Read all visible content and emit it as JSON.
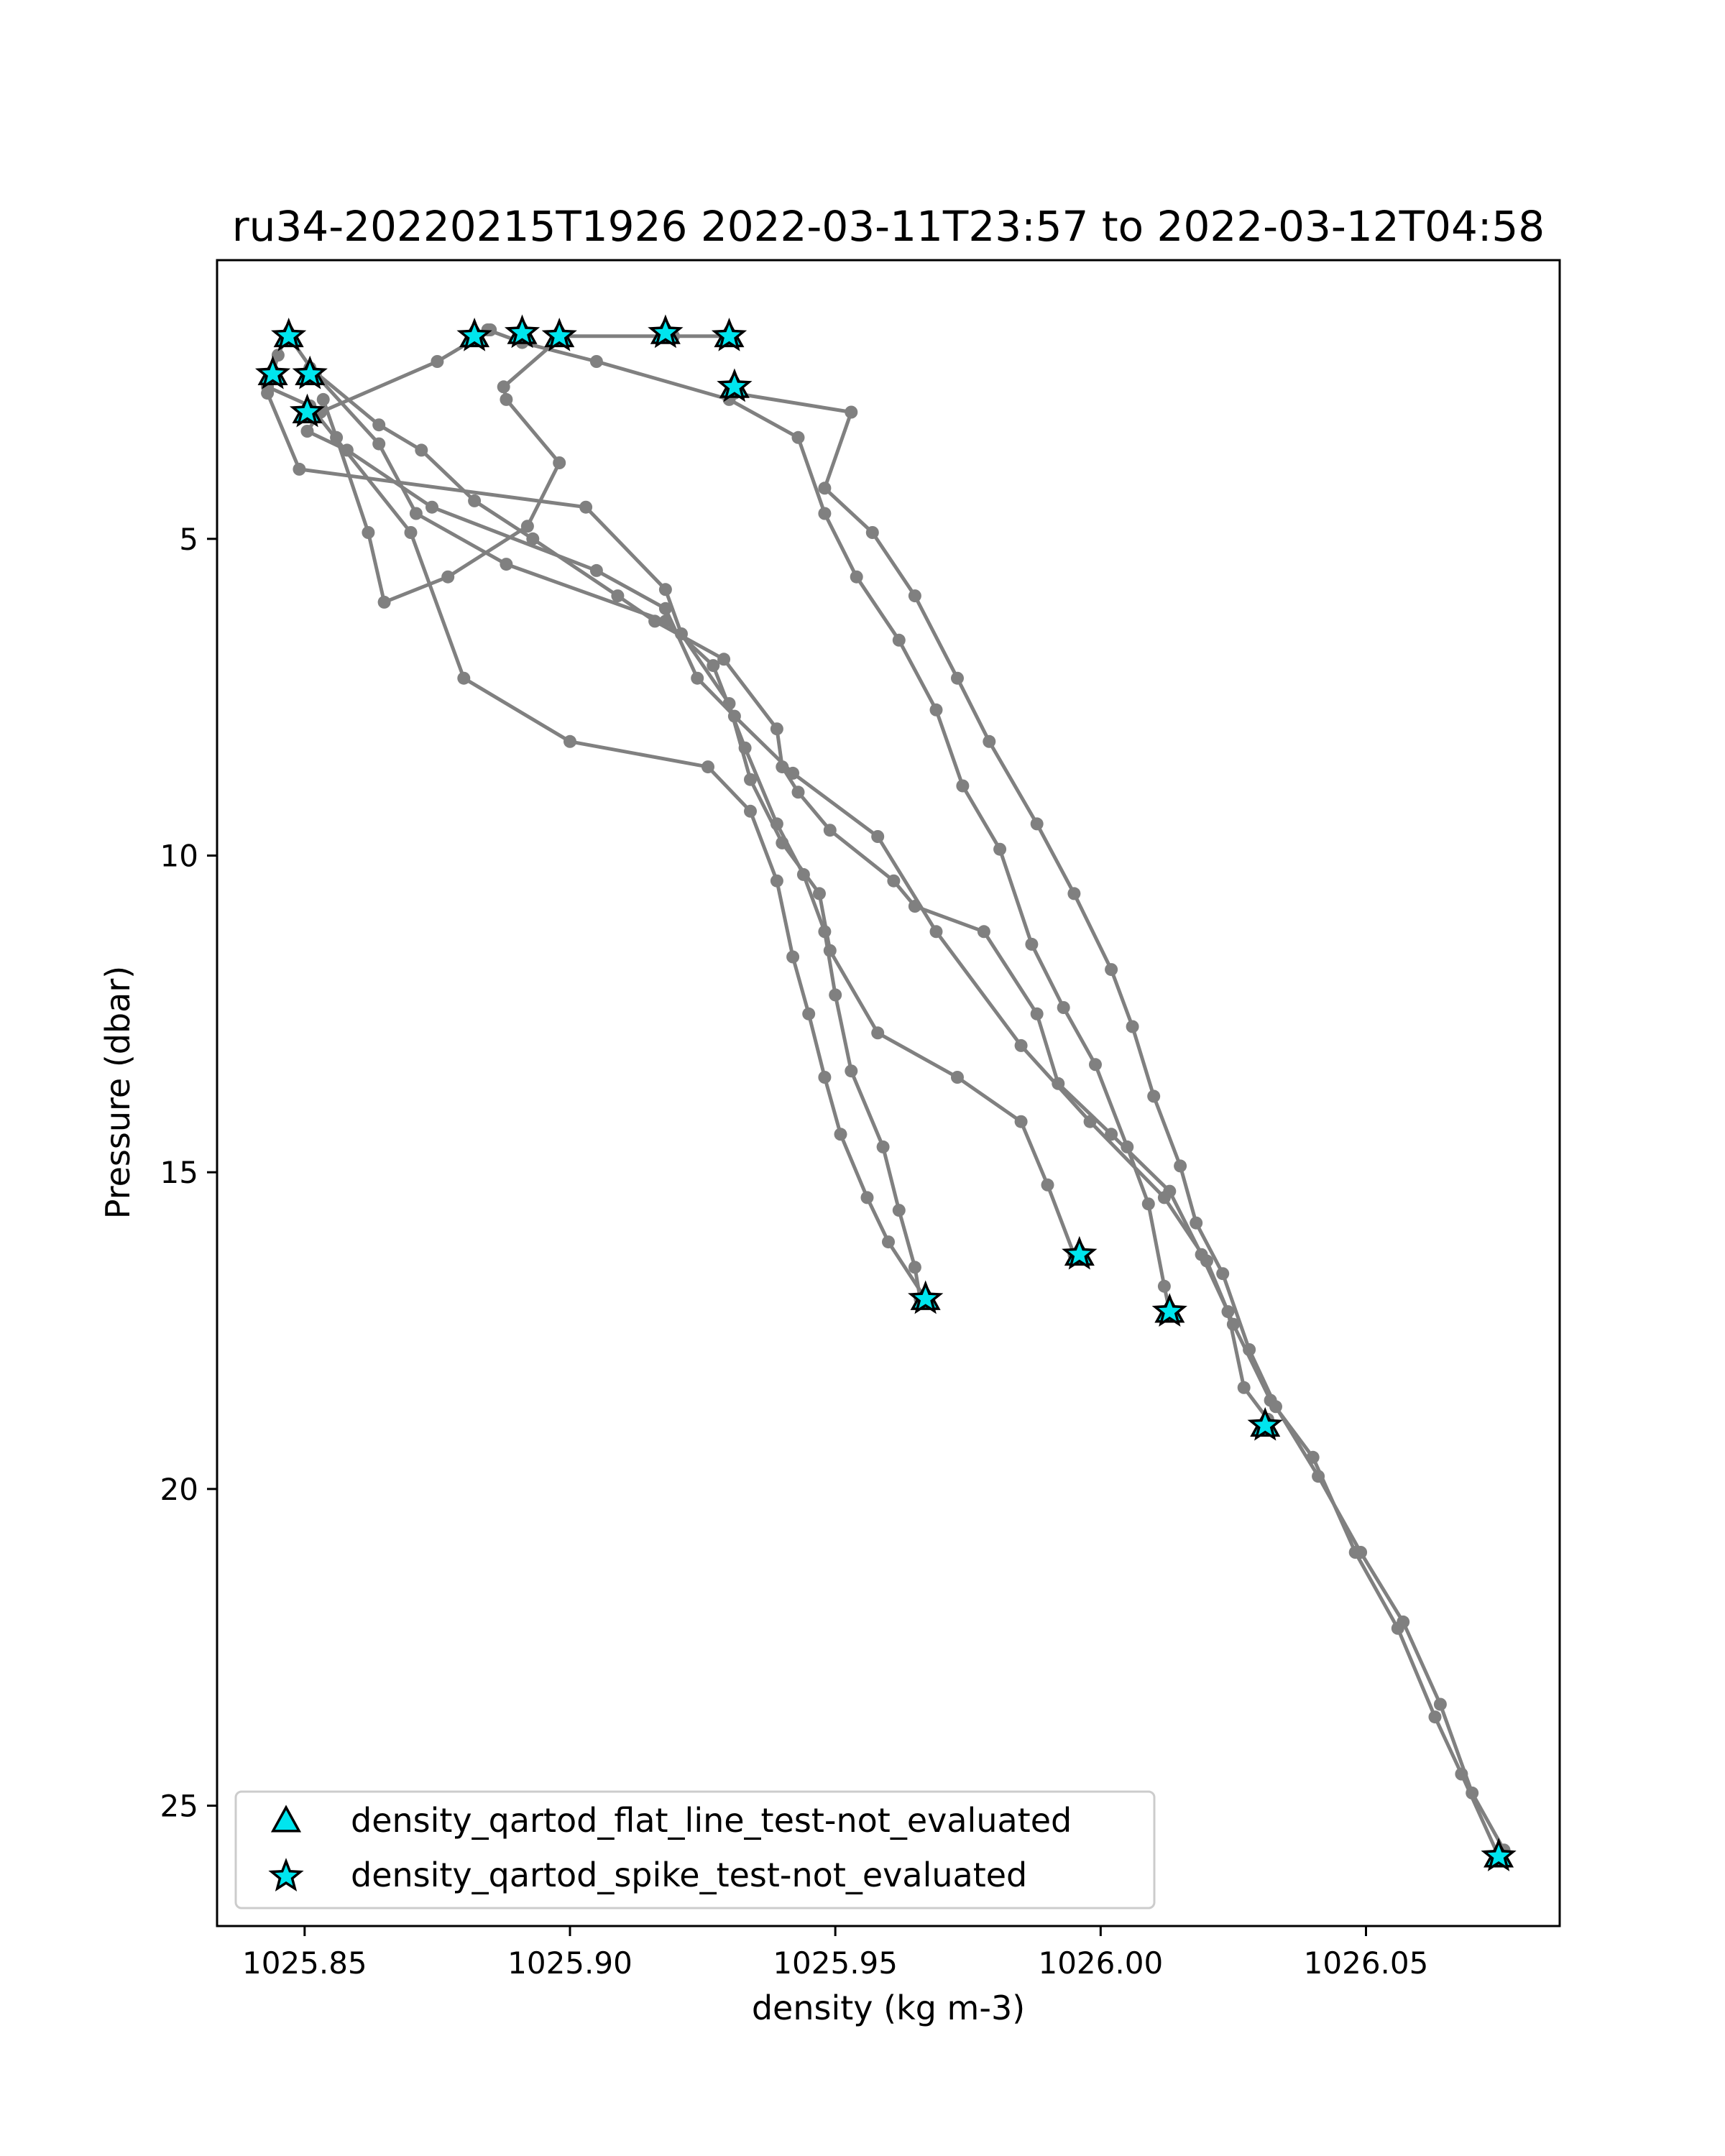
{
  "chart_data": {
    "type": "scatter",
    "title": "ru34-20220215T1926 2022-03-11T23:57 to 2022-03-12T04:58",
    "xlabel": "density (kg m-3)",
    "ylabel": "Pressure (dbar)",
    "xlim": [
      1025.8335,
      1026.0865
    ],
    "ylim": [
      26.9,
      0.6
    ],
    "y_inverted": true,
    "xticks": [
      1025.85,
      1025.9,
      1025.95,
      1026.0,
      1026.05
    ],
    "xtick_labels": [
      "1025.85",
      "1025.90",
      "1025.95",
      "1026.00",
      "1026.05"
    ],
    "yticks": [
      5,
      10,
      15,
      20,
      25
    ],
    "ytick_labels": [
      "5",
      "10",
      "15",
      "20",
      "25"
    ],
    "grid": false,
    "legend_position": "lower-left",
    "colors": {
      "profile_line": "#808080",
      "flag_marker_fill": "#00e5ee",
      "flag_marker_edge": "#000000"
    },
    "series": [
      {
        "line_style": "gray-line-with-dots",
        "values": [
          [
            [
              1025.9304,
              1.8
            ],
            [
              1025.9195,
              1.8
            ],
            [
              1025.8985,
              1.8
            ],
            [
              1025.8875,
              2.6
            ],
            [
              1025.888,
              2.8
            ],
            [
              1025.898,
              3.8
            ],
            [
              1025.892,
              4.8
            ],
            [
              1025.877,
              5.6
            ],
            [
              1025.865,
              6.0
            ],
            [
              1025.862,
              4.9
            ],
            [
              1025.856,
              3.4
            ],
            [
              1025.8535,
              2.8
            ]
          ],
          [
            [
              1025.851,
              2.3
            ],
            [
              1025.864,
              3.2
            ],
            [
              1025.872,
              3.6
            ],
            [
              1025.882,
              4.4
            ],
            [
              1025.893,
              5.0
            ],
            [
              1025.909,
              5.9
            ],
            [
              1025.916,
              6.3
            ],
            [
              1025.929,
              6.9
            ],
            [
              1025.939,
              8.0
            ],
            [
              1025.94,
              8.6
            ],
            [
              1025.943,
              9.0
            ],
            [
              1025.949,
              9.6
            ],
            [
              1025.961,
              10.4
            ],
            [
              1025.965,
              10.8
            ],
            [
              1025.978,
              11.2
            ],
            [
              1025.988,
              12.5
            ],
            [
              1025.992,
              13.6
            ],
            [
              1026.002,
              14.4
            ],
            [
              1026.013,
              15.3
            ],
            [
              1026.019,
              16.3
            ],
            [
              1026.024,
              17.2
            ],
            [
              1026.027,
              18.4
            ],
            [
              1026.0315,
              18.9
            ]
          ],
          [
            [
              1025.885,
              1.7
            ],
            [
              1025.875,
              2.2
            ],
            [
              1025.853,
              3.0
            ],
            [
              1025.8505,
              3.3
            ],
            [
              1025.858,
              3.6
            ],
            [
              1025.874,
              4.5
            ],
            [
              1025.905,
              5.5
            ],
            [
              1025.918,
              6.1
            ],
            [
              1025.924,
              7.2
            ],
            [
              1025.931,
              7.8
            ],
            [
              1025.942,
              8.7
            ],
            [
              1025.958,
              9.7
            ],
            [
              1025.969,
              11.2
            ],
            [
              1025.985,
              13.0
            ],
            [
              1025.998,
              14.2
            ],
            [
              1026.012,
              15.4
            ],
            [
              1026.02,
              16.4
            ],
            [
              1026.025,
              17.4
            ],
            [
              1026.032,
              18.6
            ],
            [
              1026.04,
              19.5
            ],
            [
              1026.048,
              21.0
            ],
            [
              1026.056,
              22.2
            ],
            [
              1026.063,
              23.6
            ],
            [
              1026.068,
              24.5
            ],
            [
              1026.075,
              25.8
            ]
          ],
          [
            [
              1025.931,
              2.7
            ],
            [
              1025.953,
              3.0
            ],
            [
              1025.948,
              4.2
            ],
            [
              1025.957,
              4.9
            ],
            [
              1025.965,
              5.9
            ],
            [
              1025.973,
              7.2
            ],
            [
              1025.979,
              8.2
            ],
            [
              1025.988,
              9.5
            ],
            [
              1025.995,
              10.6
            ],
            [
              1026.002,
              11.8
            ],
            [
              1026.006,
              12.7
            ],
            [
              1026.01,
              13.8
            ],
            [
              1026.015,
              14.9
            ],
            [
              1026.018,
              15.8
            ],
            [
              1026.023,
              16.6
            ],
            [
              1026.028,
              17.8
            ],
            [
              1026.033,
              18.7
            ],
            [
              1026.041,
              19.8
            ],
            [
              1026.049,
              21.0
            ],
            [
              1026.057,
              22.1
            ],
            [
              1026.064,
              23.4
            ],
            [
              1026.07,
              24.8
            ],
            [
              1026.076,
              25.7
            ]
          ]
        ]
      },
      {
        "line_style": "gray-line-with-dots",
        "values": [
          [
            [
              1025.8465,
              1.8
            ],
            [
              1025.845,
              2.1
            ],
            [
              1025.843,
              2.7
            ],
            [
              1025.849,
              3.9
            ],
            [
              1025.903,
              4.5
            ],
            [
              1025.918,
              5.8
            ],
            [
              1025.921,
              6.5
            ],
            [
              1025.93,
              7.6
            ],
            [
              1025.934,
              8.8
            ],
            [
              1025.94,
              9.8
            ],
            [
              1025.947,
              10.6
            ],
            [
              1025.949,
              11.5
            ],
            [
              1025.958,
              12.8
            ],
            [
              1025.973,
              13.5
            ],
            [
              1025.985,
              14.2
            ],
            [
              1025.99,
              15.2
            ],
            [
              1025.995,
              16.3
            ]
          ],
          [
            [
              1025.8845,
              1.7
            ],
            [
              1025.891,
              1.9
            ],
            [
              1025.905,
              2.2
            ],
            [
              1025.93,
              2.8
            ],
            [
              1025.943,
              3.4
            ],
            [
              1025.948,
              4.6
            ],
            [
              1025.954,
              5.6
            ],
            [
              1025.962,
              6.6
            ],
            [
              1025.969,
              7.7
            ],
            [
              1025.974,
              8.9
            ],
            [
              1025.981,
              9.9
            ],
            [
              1025.987,
              11.4
            ],
            [
              1025.993,
              12.4
            ],
            [
              1025.999,
              13.3
            ],
            [
              1026.005,
              14.6
            ],
            [
              1026.009,
              15.5
            ],
            [
              1026.012,
              16.8
            ],
            [
              1026.013,
              17.2
            ]
          ],
          [
            [
              1025.843,
              2.6
            ],
            [
              1025.851,
              2.9
            ],
            [
              1025.87,
              4.9
            ],
            [
              1025.88,
              7.2
            ],
            [
              1025.9,
              8.2
            ],
            [
              1025.926,
              8.6
            ],
            [
              1025.934,
              9.3
            ],
            [
              1025.939,
              10.4
            ],
            [
              1025.942,
              11.6
            ],
            [
              1025.945,
              12.5
            ],
            [
              1025.948,
              13.5
            ],
            [
              1025.951,
              14.4
            ],
            [
              1025.956,
              15.4
            ],
            [
              1025.96,
              16.1
            ],
            [
              1025.967,
              17.0
            ]
          ],
          [
            [
              1025.847,
              1.8
            ],
            [
              1025.852,
              2.4
            ],
            [
              1025.864,
              3.5
            ],
            [
              1025.871,
              4.6
            ],
            [
              1025.888,
              5.4
            ],
            [
              1025.918,
              6.3
            ],
            [
              1025.927,
              7.0
            ],
            [
              1025.933,
              8.3
            ],
            [
              1025.939,
              9.5
            ],
            [
              1025.944,
              10.3
            ],
            [
              1025.948,
              11.2
            ],
            [
              1025.95,
              12.2
            ],
            [
              1025.953,
              13.4
            ],
            [
              1025.959,
              14.6
            ],
            [
              1025.962,
              15.6
            ],
            [
              1025.965,
              16.5
            ],
            [
              1025.966,
              17.0
            ]
          ]
        ]
      }
    ],
    "flag_markers": {
      "flat_line_triangles": [
        [
          1025.847,
          1.8
        ],
        [
          1025.844,
          2.4
        ],
        [
          1025.851,
          2.4
        ],
        [
          1025.8505,
          3.0
        ],
        [
          1025.882,
          1.8
        ],
        [
          1025.891,
          1.75
        ],
        [
          1025.898,
          1.8
        ],
        [
          1025.918,
          1.75
        ],
        [
          1025.93,
          1.8
        ],
        [
          1025.931,
          2.6
        ],
        [
          1025.967,
          17.0
        ],
        [
          1025.996,
          16.3
        ],
        [
          1026.013,
          17.2
        ],
        [
          1026.031,
          19.0
        ],
        [
          1026.075,
          25.8
        ]
      ],
      "spike_stars": [
        [
          1025.847,
          1.8
        ],
        [
          1025.844,
          2.4
        ],
        [
          1025.851,
          2.4
        ],
        [
          1025.8505,
          3.0
        ],
        [
          1025.882,
          1.8
        ],
        [
          1025.891,
          1.75
        ],
        [
          1025.898,
          1.8
        ],
        [
          1025.918,
          1.75
        ],
        [
          1025.93,
          1.8
        ],
        [
          1025.931,
          2.6
        ],
        [
          1025.967,
          17.0
        ],
        [
          1025.996,
          16.3
        ],
        [
          1026.013,
          17.2
        ],
        [
          1026.031,
          19.0
        ],
        [
          1026.075,
          25.8
        ]
      ]
    },
    "legend": [
      {
        "marker": "triangle",
        "label": "density_qartod_flat_line_test-not_evaluated"
      },
      {
        "marker": "star",
        "label": "density_qartod_spike_test-not_evaluated"
      }
    ]
  }
}
